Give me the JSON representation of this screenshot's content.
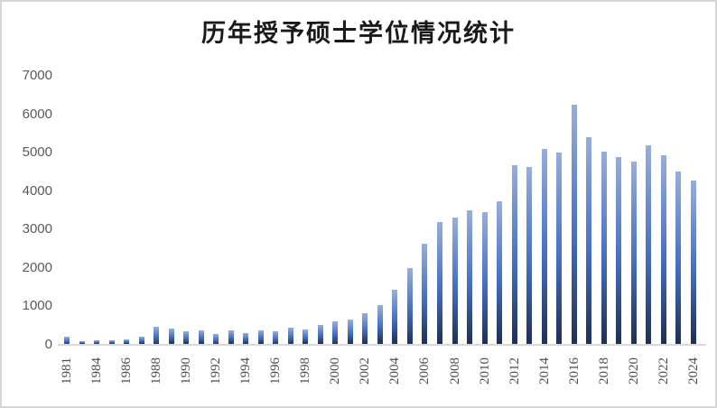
{
  "title": "历年授予硕士学位情况统计",
  "colors": {
    "background": "#ffffff",
    "canvas_border": "#d6d6d6",
    "axis_line": "#d9d9d9",
    "y_tick_label": "#595959",
    "x_tick_label": "#4d4d4d",
    "title_color": "#1a1a1a",
    "bar_gradient_top": "#97aedc",
    "bar_gradient_mid": "#4470be",
    "bar_gradient_bottom": "#1d2f54"
  },
  "chart_data": {
    "type": "bar",
    "title": "历年授予硕士学位情况统计",
    "categories": [
      "1981",
      "1983",
      "1984",
      "1985",
      "1986",
      "1987",
      "1988",
      "1989",
      "1990",
      "1991",
      "1992",
      "1993",
      "1994",
      "1995",
      "1996",
      "1997",
      "1998",
      "1999",
      "2000",
      "2001",
      "2002",
      "2003",
      "2004",
      "2005",
      "2006",
      "2007",
      "2008",
      "2009",
      "2010",
      "2011",
      "2012",
      "2013",
      "2014",
      "2015",
      "2016",
      "2017",
      "2018",
      "2019",
      "2020",
      "2021",
      "2022",
      "2023",
      "2024"
    ],
    "values": [
      200,
      80,
      110,
      110,
      130,
      195,
      450,
      420,
      340,
      355,
      275,
      355,
      290,
      360,
      350,
      425,
      395,
      495,
      600,
      655,
      810,
      1020,
      1420,
      2000,
      2620,
      3200,
      3300,
      3500,
      3450,
      3740,
      4670,
      4630,
      5100,
      5000,
      6250,
      5400,
      5030,
      4890,
      4760,
      5190,
      4940,
      4510,
      4260
    ],
    "x_tick_labels": [
      "1981",
      "1984",
      "1986",
      "1988",
      "1990",
      "1992",
      "1994",
      "1996",
      "1998",
      "2000",
      "2002",
      "2004",
      "2006",
      "2008",
      "2010",
      "2012",
      "2014",
      "2016",
      "2018",
      "2020",
      "2022",
      "2024"
    ],
    "y_ticks": [
      0,
      1000,
      2000,
      3000,
      4000,
      5000,
      6000,
      7000
    ],
    "ylim": [
      0,
      7000
    ],
    "xlabel": "",
    "ylabel": "",
    "grid": false,
    "legend": false
  }
}
